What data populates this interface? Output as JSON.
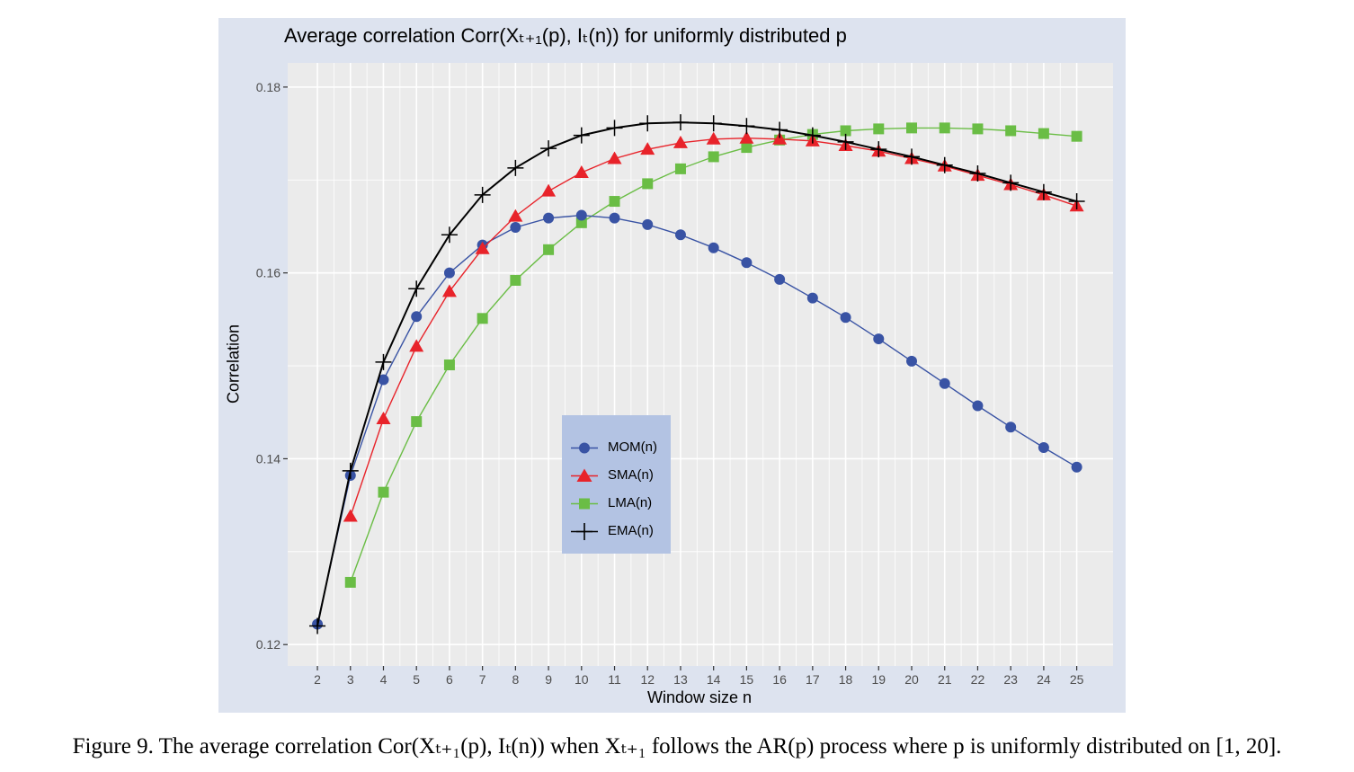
{
  "figure": {
    "title": "Average correlation Corr(Xₜ₊₁(p), Iₜ(n)) for uniformly distributed p",
    "caption": "Figure 9.  The average correlation Cor(Xₜ₊₁(p), Iₜ(n)) when Xₜ₊₁ follows the AR(p) process where p is uniformly distributed on [1, 20]."
  },
  "colors": {
    "panel_background": "#dde3ef",
    "plot_background": "#ebebeb",
    "grid": "#ffffff",
    "legend_background": "#b3c3e3",
    "MOM": "#3953a4",
    "SMA": "#e8232a",
    "LMA": "#6abd45",
    "EMA": "#000000"
  },
  "chart_data": {
    "type": "line",
    "title": "Average correlation Corr(Xₜ₊₁(p), Iₜ(n)) for uniformly distributed p",
    "xlabel": "Window size n",
    "ylabel": "Correlation",
    "x": [
      2,
      3,
      4,
      5,
      6,
      7,
      8,
      9,
      10,
      11,
      12,
      13,
      14,
      15,
      16,
      17,
      18,
      19,
      20,
      21,
      22,
      23,
      24,
      25
    ],
    "xticks": [
      "2",
      "3",
      "4",
      "5",
      "6",
      "7",
      "8",
      "9",
      "10",
      "11",
      "12",
      "13",
      "14",
      "15",
      "16",
      "17",
      "18",
      "19",
      "20",
      "21",
      "22",
      "23",
      "24",
      "25"
    ],
    "yticks": [
      "0.12",
      "0.14",
      "0.16",
      "0.18"
    ],
    "ylim": [
      0.1177,
      0.1826
    ],
    "xlim": [
      1.1,
      26.1
    ],
    "grid": true,
    "legend_position": "center",
    "series": [
      {
        "name": "MOM(n)",
        "marker": "circle",
        "color": "#3953a4",
        "x": [
          2,
          3,
          4,
          5,
          6,
          7,
          8,
          9,
          10,
          11,
          12,
          13,
          14,
          15,
          16,
          17,
          18,
          19,
          20,
          21,
          22,
          23,
          24,
          25
        ],
        "values": [
          0.1222,
          0.1382,
          0.1485,
          0.1553,
          0.16,
          0.163,
          0.1649,
          0.1659,
          0.1662,
          0.1659,
          0.1652,
          0.1641,
          0.1627,
          0.1611,
          0.1593,
          0.1573,
          0.1552,
          0.1529,
          0.1505,
          0.1481,
          0.1457,
          0.1434,
          0.1412,
          0.1391
        ]
      },
      {
        "name": "SMA(n)",
        "marker": "triangle",
        "color": "#e8232a",
        "x": [
          3,
          4,
          5,
          6,
          7,
          8,
          9,
          10,
          11,
          12,
          13,
          14,
          15,
          16,
          17,
          18,
          19,
          20,
          21,
          22,
          23,
          24,
          25
        ],
        "values": [
          0.1338,
          0.1443,
          0.1521,
          0.158,
          0.1626,
          0.1661,
          0.1688,
          0.1708,
          0.1723,
          0.1733,
          0.174,
          0.1744,
          0.1745,
          0.1744,
          0.1742,
          0.1737,
          0.1731,
          0.1723,
          0.1715,
          0.1705,
          0.1695,
          0.1684,
          0.1672
        ]
      },
      {
        "name": "LMA(n)",
        "marker": "square",
        "color": "#6abd45",
        "x": [
          3,
          4,
          5,
          6,
          7,
          8,
          9,
          10,
          11,
          12,
          13,
          14,
          15,
          16,
          17,
          18,
          19,
          20,
          21,
          22,
          23,
          24,
          25
        ],
        "values": [
          0.1267,
          0.1364,
          0.144,
          0.1501,
          0.1551,
          0.1592,
          0.1625,
          0.1654,
          0.1677,
          0.1696,
          0.1712,
          0.1725,
          0.1735,
          0.1743,
          0.1749,
          0.1753,
          0.1755,
          0.1756,
          0.1756,
          0.1755,
          0.1753,
          0.175,
          0.1747
        ]
      },
      {
        "name": "EMA(n)",
        "marker": "plus",
        "color": "#000000",
        "x": [
          2,
          3,
          4,
          5,
          6,
          7,
          8,
          9,
          10,
          11,
          12,
          13,
          14,
          15,
          16,
          17,
          18,
          19,
          20,
          21,
          22,
          23,
          24,
          25
        ],
        "values": [
          0.122,
          0.1387,
          0.1504,
          0.1583,
          0.1641,
          0.1684,
          0.1713,
          0.1734,
          0.1748,
          0.1756,
          0.1761,
          0.1762,
          0.1761,
          0.1758,
          0.1754,
          0.1748,
          0.1741,
          0.1733,
          0.1725,
          0.1716,
          0.1707,
          0.1697,
          0.1687,
          0.1677
        ]
      }
    ]
  }
}
